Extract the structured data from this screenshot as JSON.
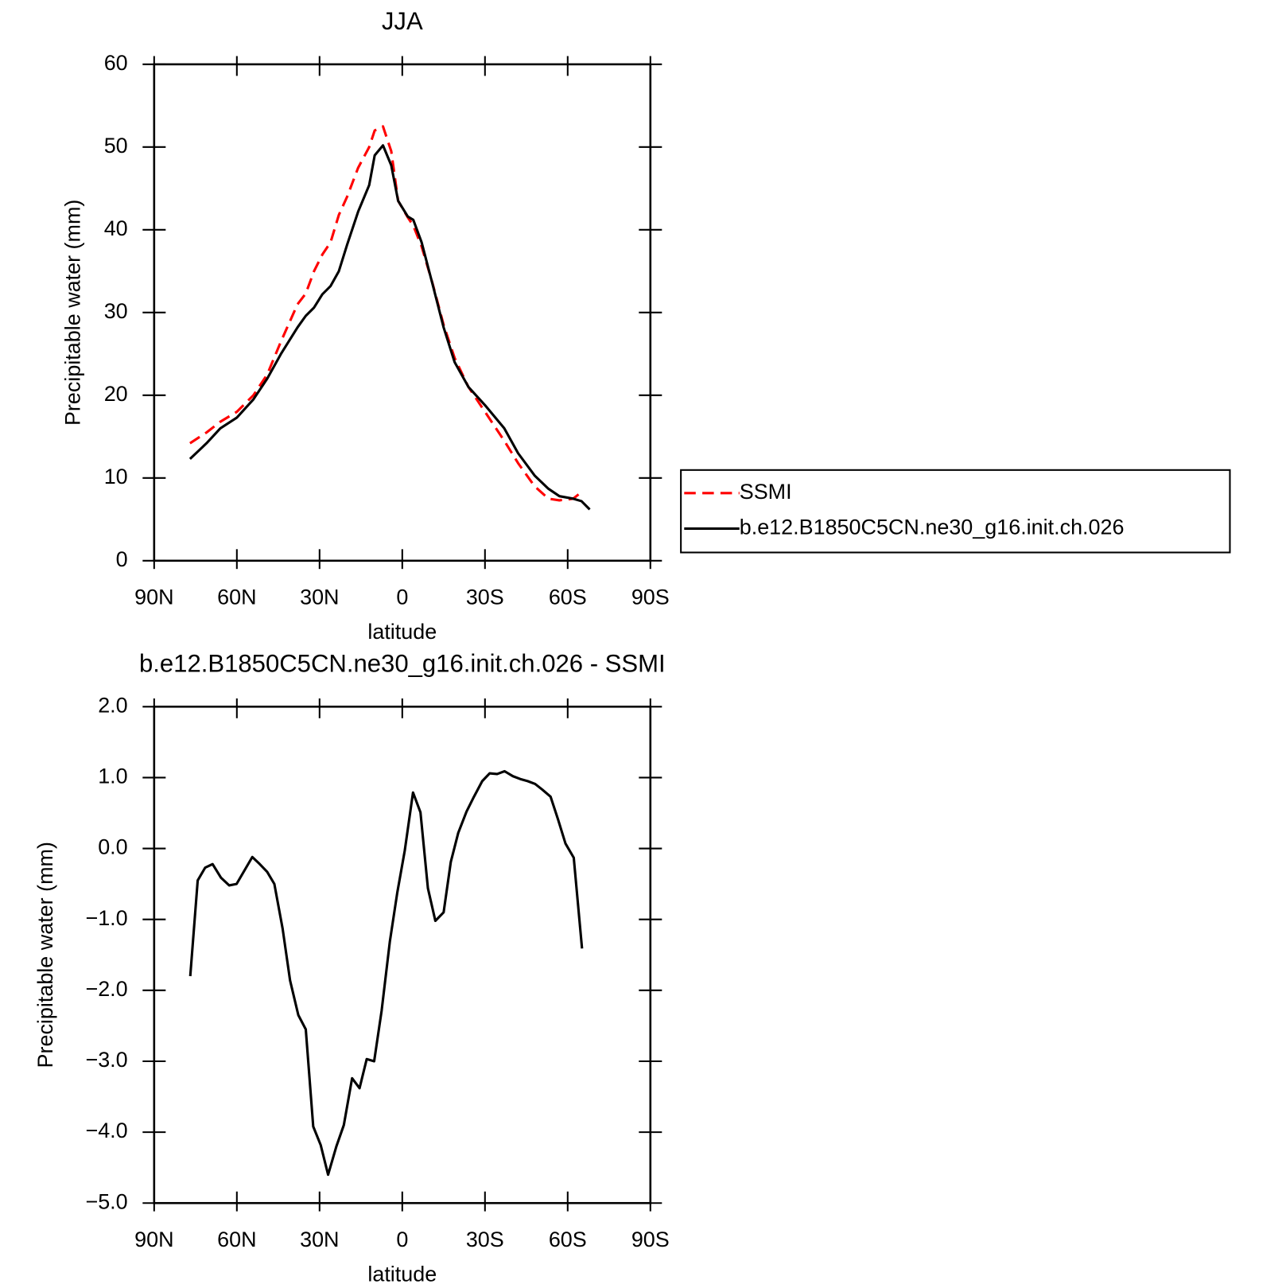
{
  "chart_data": [
    {
      "type": "line",
      "title": "JJA",
      "x_label": "latitude",
      "y_label": "Precipitable water (mm)",
      "x": [
        77,
        71,
        66,
        60,
        54,
        49,
        44,
        38,
        35,
        32,
        29,
        26,
        23,
        20,
        16,
        12,
        10,
        7,
        4,
        1.5,
        -2,
        -4,
        -7,
        -11,
        -15,
        -19,
        -24,
        -30,
        -37,
        -42,
        -48,
        -53,
        -57,
        -62,
        -65,
        -68
      ],
      "series": [
        {
          "name": "SSMI",
          "color": "#ff0000",
          "line_style": "dashed",
          "values": [
            14.2,
            15.5,
            16.8,
            18.0,
            20.0,
            22.5,
            26.5,
            31.0,
            32.3,
            35.0,
            37.0,
            38.5,
            41.8,
            44.0,
            47.5,
            50.0,
            52.0,
            52.5,
            49.5,
            43.5,
            41.5,
            40.5,
            38.0,
            33.5,
            28.5,
            24.5,
            21.0,
            18.0,
            14.5,
            11.8,
            9.0,
            7.5,
            7.3,
            7.5,
            8.3,
            null
          ]
        },
        {
          "name": "b.e12.B1850C5CN.ne30_g16.init.ch.026",
          "color": "#000000",
          "line_style": "solid",
          "values": [
            12.3,
            14.2,
            16.0,
            17.3,
            19.5,
            22.0,
            25.0,
            28.2,
            29.6,
            30.6,
            32.2,
            33.2,
            35.0,
            38.2,
            42.2,
            45.4,
            49.0,
            50.2,
            47.8,
            43.5,
            41.6,
            41.2,
            38.5,
            33.4,
            28.2,
            24.0,
            21.0,
            18.8,
            16.0,
            13.0,
            10.3,
            8.7,
            7.8,
            7.5,
            7.2,
            6.2
          ]
        }
      ],
      "xlim": [
        90,
        -90
      ],
      "xticks": [
        {
          "value": 90,
          "label": "90N"
        },
        {
          "value": 60,
          "label": "60N"
        },
        {
          "value": 30,
          "label": "30N"
        },
        0,
        {
          "value": -30,
          "label": "30S"
        },
        {
          "value": -60,
          "label": "60S"
        },
        {
          "value": -90,
          "label": "90S"
        }
      ],
      "ylim": [
        0,
        60
      ],
      "yticks": [
        0,
        10,
        20,
        30,
        40,
        50,
        60
      ],
      "legend": "right"
    },
    {
      "type": "line",
      "title": "b.e12.B1850C5CN.ne30_g16.init.ch.026 - SSMI",
      "x_label": "latitude",
      "y_label": "Precipitable water (mm)",
      "x": [
        76.9,
        74.2,
        71.5,
        68.8,
        65.8,
        62.8,
        60.1,
        54.4,
        51.7,
        49.0,
        46.4,
        43.4,
        40.7,
        37.7,
        35.0,
        32.3,
        29.6,
        26.9,
        23.9,
        21.2,
        18.2,
        15.5,
        12.9,
        10.2,
        7.5,
        4.5,
        1.8,
        -0.9,
        -3.9,
        -6.6,
        -9.3,
        -12.0,
        -15.0,
        -17.6,
        -20.3,
        -23.3,
        -26.0,
        -29.0,
        -31.7,
        -34.4,
        -37.1,
        -40.1,
        -42.8,
        -45.5,
        -48.2,
        -50.8,
        -53.8,
        -56.5,
        -59.2,
        -62.2,
        -65.2
      ],
      "series": [
        {
          "color": "#000000",
          "line_style": "solid",
          "values": [
            -1.8,
            -0.45,
            -0.27,
            -0.22,
            -0.41,
            -0.52,
            -0.5,
            -0.12,
            -0.22,
            -0.33,
            -0.5,
            -1.13,
            -1.86,
            -2.35,
            -2.55,
            -3.92,
            -4.18,
            -4.6,
            -4.2,
            -3.9,
            -3.24,
            -3.38,
            -2.97,
            -3.0,
            -2.29,
            -1.31,
            -0.62,
            -0.03,
            0.79,
            0.51,
            -0.56,
            -1.02,
            -0.9,
            -0.19,
            0.22,
            0.52,
            0.73,
            0.95,
            1.06,
            1.05,
            1.09,
            1.02,
            0.98,
            0.95,
            0.91,
            0.83,
            0.73,
            0.41,
            0.07,
            -0.13,
            -1.41
          ]
        }
      ],
      "xlim": [
        90,
        -90
      ],
      "xticks": [
        {
          "value": 90,
          "label": "90N"
        },
        {
          "value": 60,
          "label": "60N"
        },
        {
          "value": 30,
          "label": "30N"
        },
        0,
        {
          "value": -30,
          "label": "30S"
        },
        {
          "value": -60,
          "label": "60S"
        },
        {
          "value": -90,
          "label": "90S"
        }
      ],
      "ylim": [
        -5,
        2
      ],
      "yticks": [
        {
          "value": -5,
          "label": "−5.0"
        },
        {
          "value": -4,
          "label": "−4.0"
        },
        {
          "value": -3,
          "label": "−3.0"
        },
        {
          "value": -2,
          "label": "−2.0"
        },
        {
          "value": -1,
          "label": "−1.0"
        },
        {
          "value": 0,
          "label": "0.0"
        },
        {
          "value": 1,
          "label": "1.0"
        },
        {
          "value": 2,
          "label": "2.0"
        }
      ]
    }
  ]
}
